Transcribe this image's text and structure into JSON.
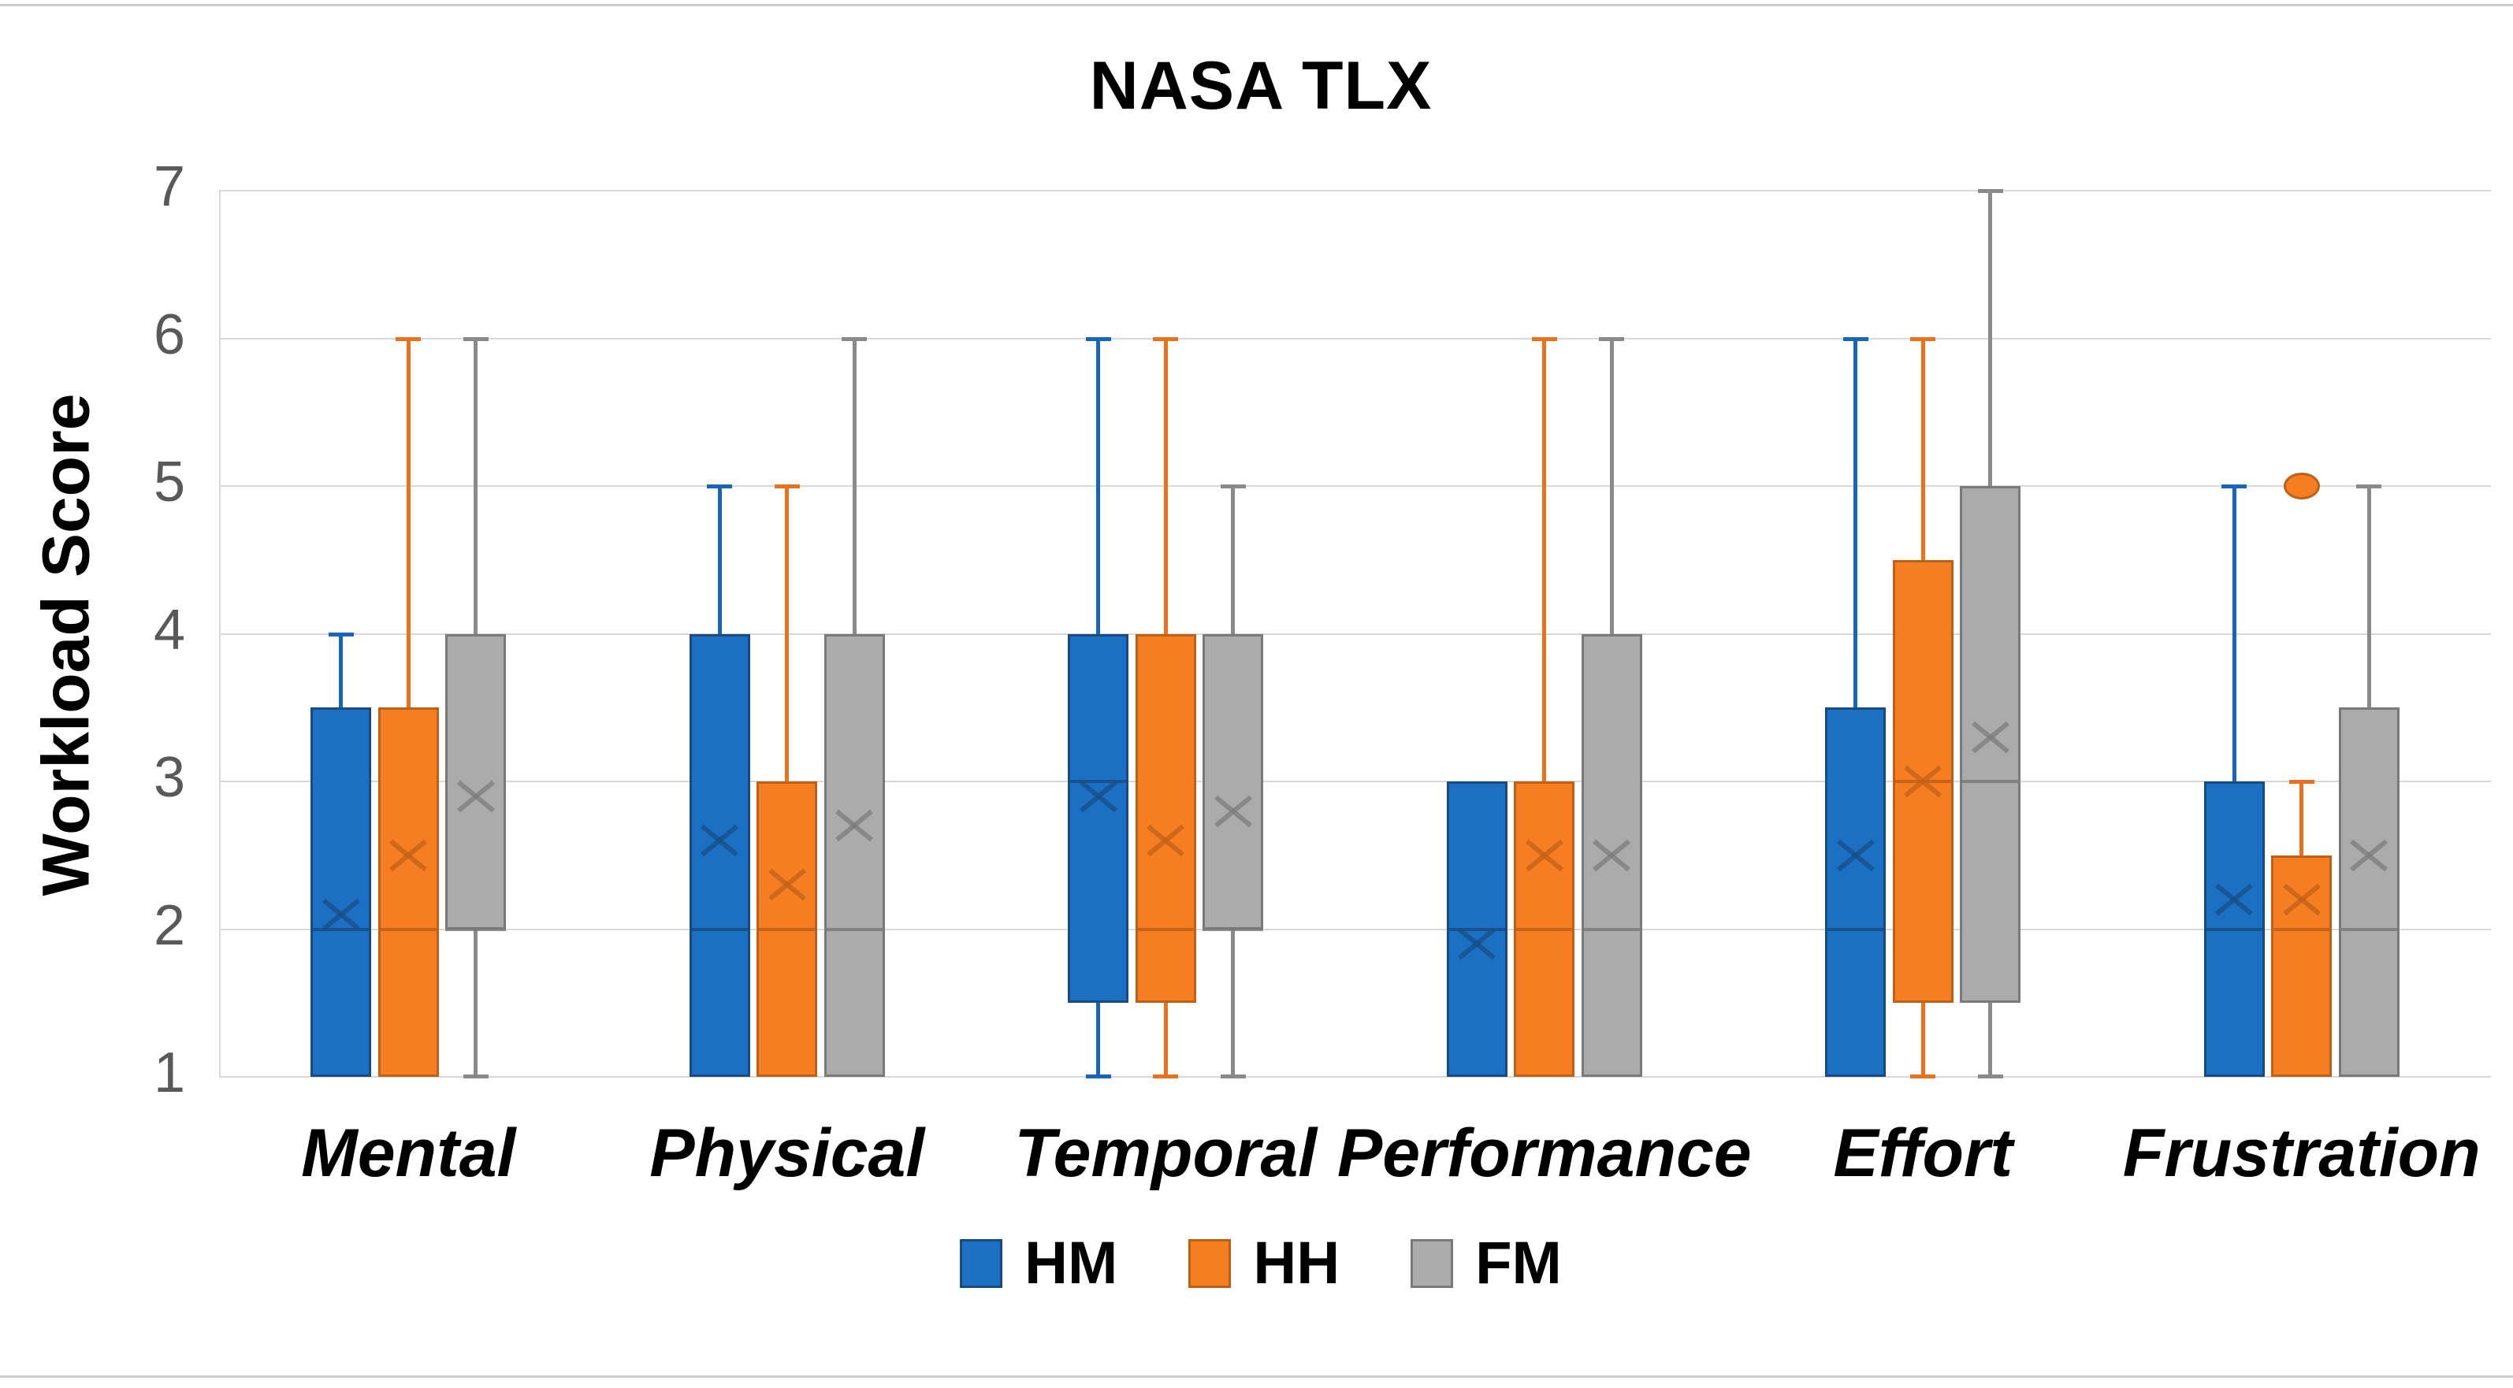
{
  "page": {
    "background": "#ffffff",
    "frame_line_color": "#cdcdcd"
  },
  "chart_data": {
    "type": "box",
    "title": "NASA TLX",
    "ylabel": "Workload Score",
    "ylim": [
      1,
      7
    ],
    "yticks": [
      1,
      2,
      3,
      4,
      5,
      6,
      7
    ],
    "grid": true,
    "grid_color": "#d9d9d9",
    "tick_label_color": "#595959",
    "legend_position": "bottom",
    "categories": [
      "Mental",
      "Physical",
      "Temporal",
      "Performance",
      "Effort",
      "Frustration"
    ],
    "series": [
      {
        "name": "HM",
        "fill": "#1B70C4",
        "stroke": "#174C82",
        "line": "#1765B8",
        "boxes": [
          {
            "category": "Mental",
            "whisker_low": 1,
            "q1": 1,
            "median": 2,
            "q3": 3.5,
            "whisker_high": 4,
            "mean": 2.1,
            "outliers": []
          },
          {
            "category": "Physical",
            "whisker_low": 1,
            "q1": 1,
            "median": 2,
            "q3": 4,
            "whisker_high": 5,
            "mean": 2.6,
            "outliers": []
          },
          {
            "category": "Temporal",
            "whisker_low": 1,
            "q1": 1.5,
            "median": 3,
            "q3": 4,
            "whisker_high": 6,
            "mean": 2.9,
            "outliers": []
          },
          {
            "category": "Performance",
            "whisker_low": 1,
            "q1": 1,
            "median": 2,
            "q3": 3,
            "whisker_high": 3,
            "mean": 1.9,
            "outliers": []
          },
          {
            "category": "Effort",
            "whisker_low": 1,
            "q1": 1,
            "median": 2,
            "q3": 3.5,
            "whisker_high": 6,
            "mean": 2.5,
            "outliers": []
          },
          {
            "category": "Frustration",
            "whisker_low": 1,
            "q1": 1,
            "median": 2,
            "q3": 3,
            "whisker_high": 5,
            "mean": 2.2,
            "outliers": []
          }
        ]
      },
      {
        "name": "HH",
        "fill": "#F57E22",
        "stroke": "#C05F16",
        "line": "#E8721F",
        "boxes": [
          {
            "category": "Mental",
            "whisker_low": 1,
            "q1": 1,
            "median": 2,
            "q3": 3.5,
            "whisker_high": 6,
            "mean": 2.5,
            "outliers": []
          },
          {
            "category": "Physical",
            "whisker_low": 1,
            "q1": 1,
            "median": 2,
            "q3": 3,
            "whisker_high": 5,
            "mean": 2.3,
            "outliers": []
          },
          {
            "category": "Temporal",
            "whisker_low": 1,
            "q1": 1.5,
            "median": 2,
            "q3": 4,
            "whisker_high": 6,
            "mean": 2.6,
            "outliers": []
          },
          {
            "category": "Performance",
            "whisker_low": 1,
            "q1": 1,
            "median": 2,
            "q3": 3,
            "whisker_high": 6,
            "mean": 2.5,
            "outliers": []
          },
          {
            "category": "Effort",
            "whisker_low": 1,
            "q1": 1.5,
            "median": 3,
            "q3": 4.5,
            "whisker_high": 6,
            "mean": 3.0,
            "outliers": []
          },
          {
            "category": "Frustration",
            "whisker_low": 1,
            "q1": 1,
            "median": 2,
            "q3": 2.5,
            "whisker_high": 3,
            "mean": 2.2,
            "outliers": [
              5
            ]
          }
        ]
      },
      {
        "name": "FM",
        "fill": "#ABABAB",
        "stroke": "#7A7A7A",
        "line": "#8A8A8A",
        "boxes": [
          {
            "category": "Mental",
            "whisker_low": 1,
            "q1": 2,
            "median": 2,
            "q3": 4,
            "whisker_high": 6,
            "mean": 2.9,
            "outliers": []
          },
          {
            "category": "Physical",
            "whisker_low": 1,
            "q1": 1,
            "median": 2,
            "q3": 4,
            "whisker_high": 6,
            "mean": 2.7,
            "outliers": []
          },
          {
            "category": "Temporal",
            "whisker_low": 1,
            "q1": 2,
            "median": 2,
            "q3": 4,
            "whisker_high": 5,
            "mean": 2.8,
            "outliers": []
          },
          {
            "category": "Performance",
            "whisker_low": 1,
            "q1": 1,
            "median": 2,
            "q3": 4,
            "whisker_high": 6,
            "mean": 2.5,
            "outliers": []
          },
          {
            "category": "Effort",
            "whisker_low": 1,
            "q1": 1.5,
            "median": 3,
            "q3": 5,
            "whisker_high": 7,
            "mean": 3.3,
            "outliers": []
          },
          {
            "category": "Frustration",
            "whisker_low": 1,
            "q1": 1,
            "median": 2,
            "q3": 3.5,
            "whisker_high": 5,
            "mean": 2.5,
            "outliers": []
          }
        ]
      }
    ]
  }
}
